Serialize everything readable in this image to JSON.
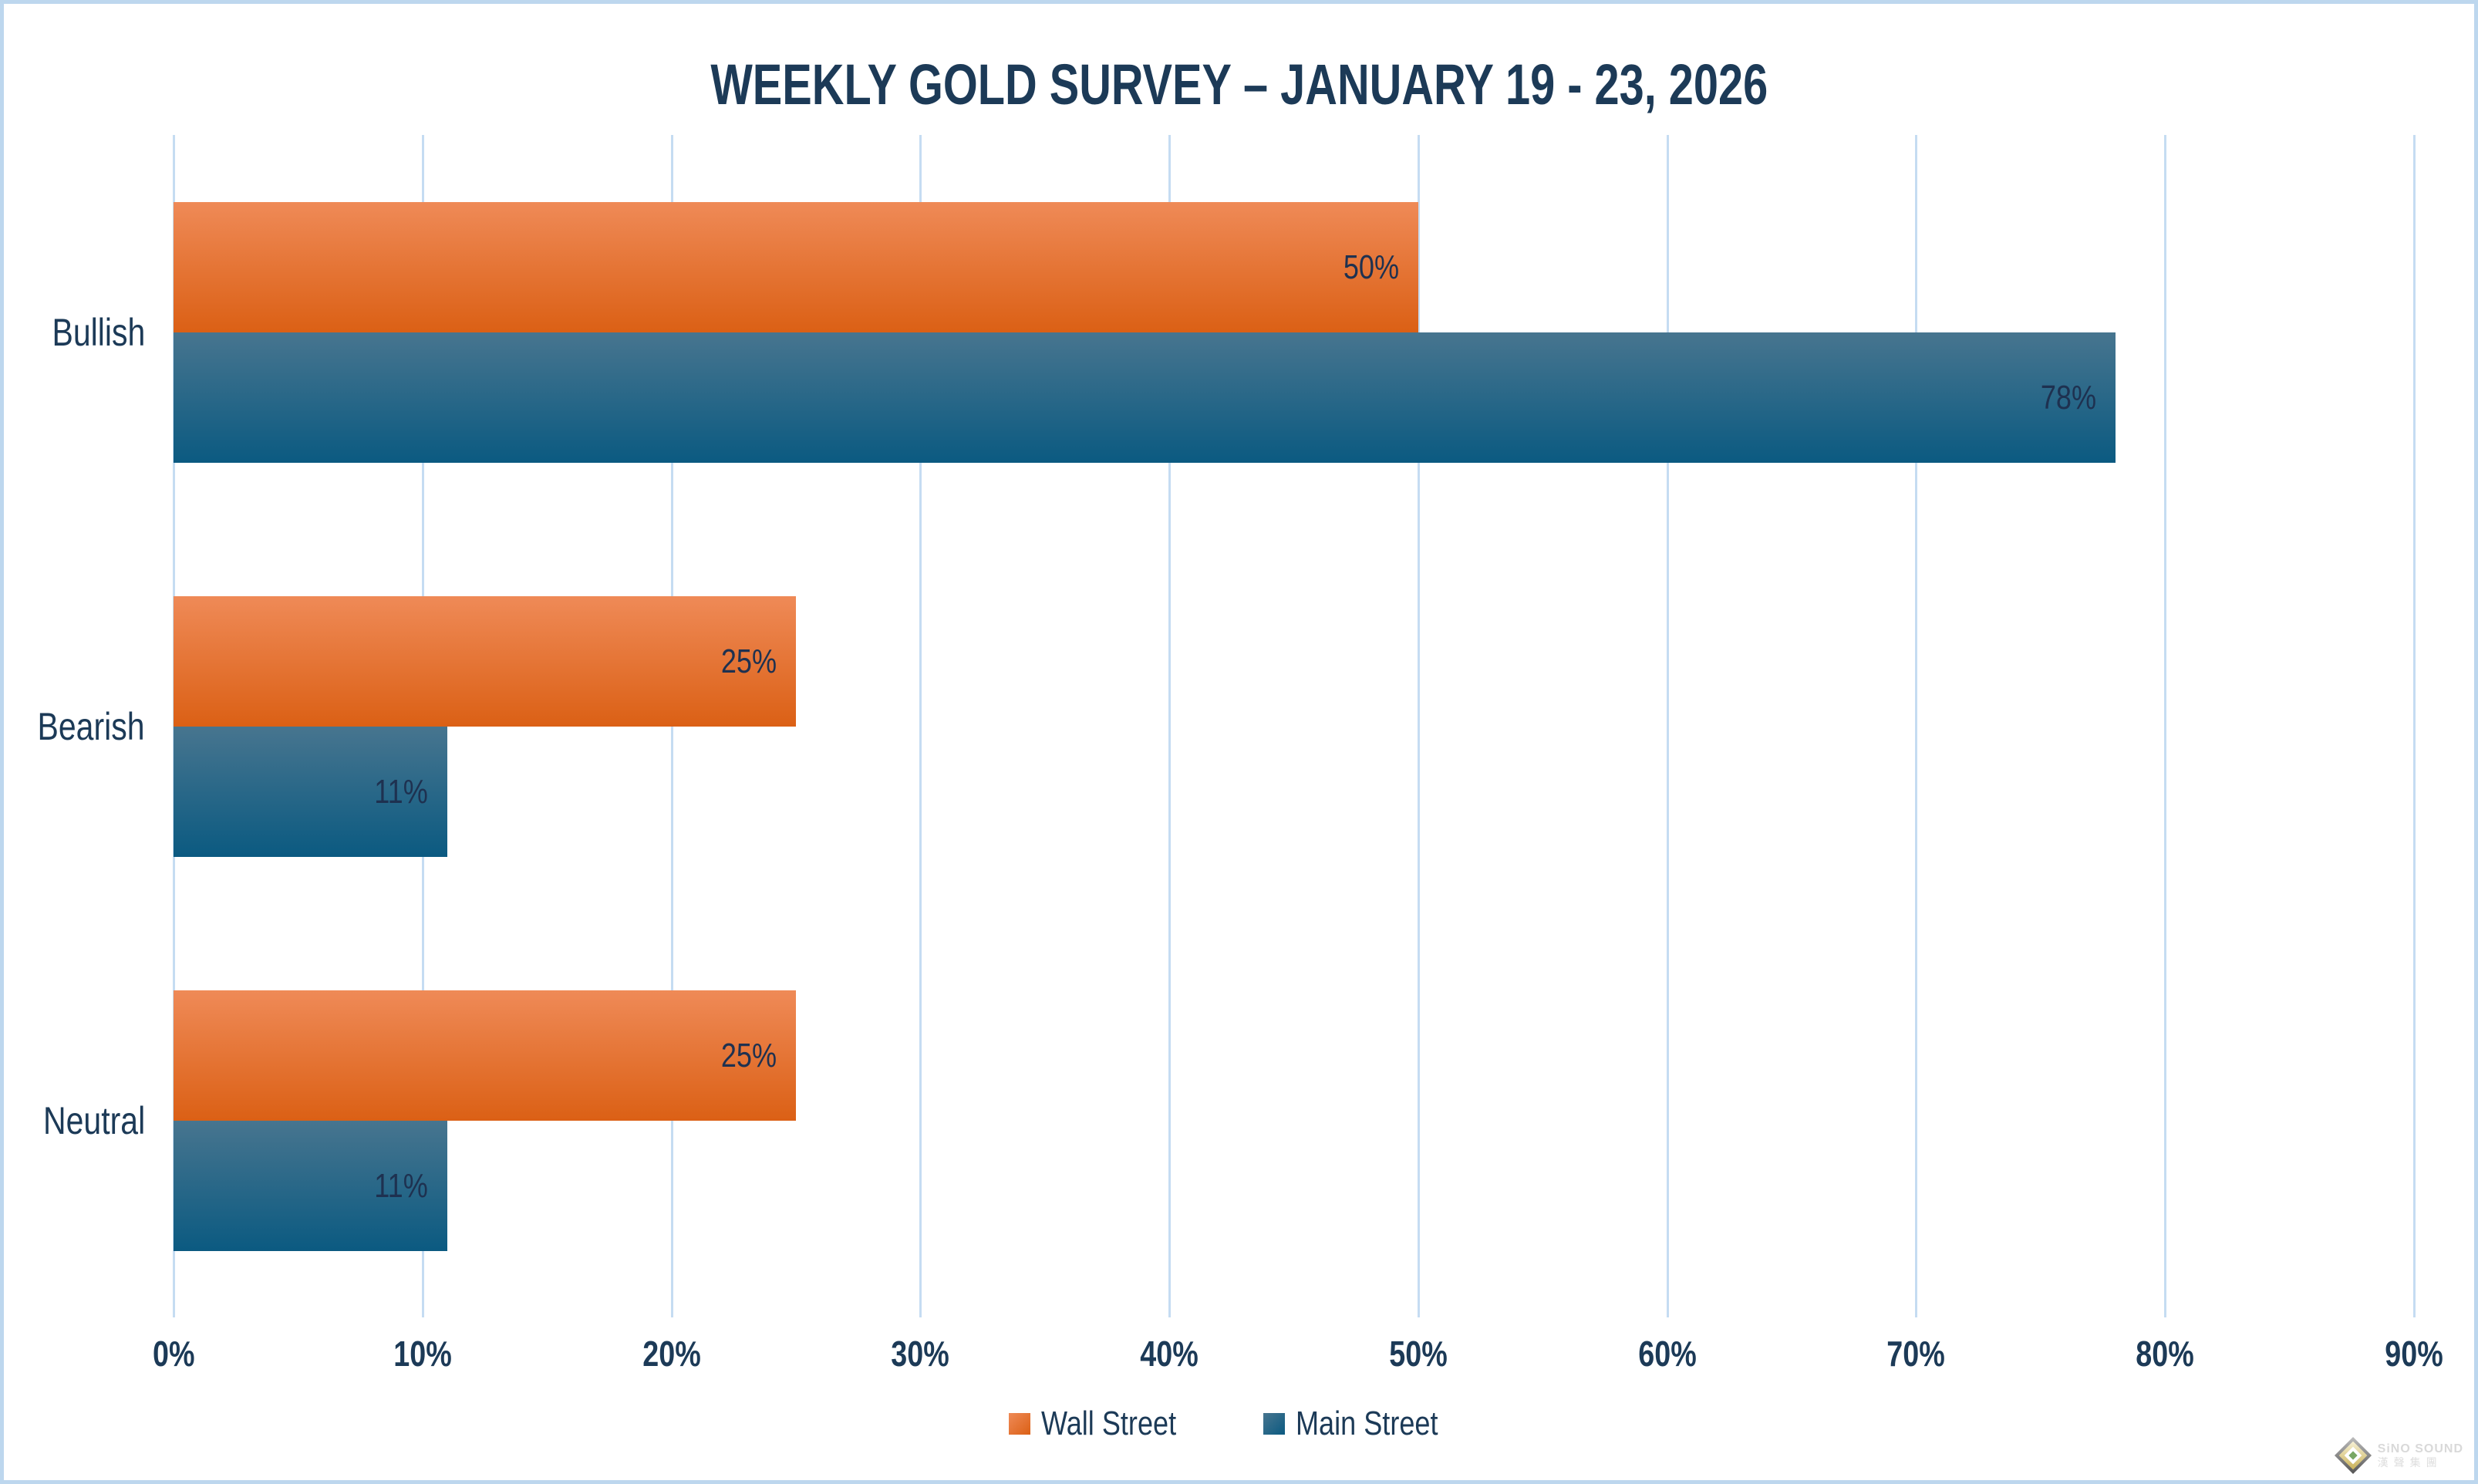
{
  "title": "WEEKLY GOLD SURVEY – JANUARY 19 - 23, 2026",
  "chart_data": {
    "type": "bar",
    "orientation": "horizontal",
    "title": "WEEKLY GOLD SURVEY – JANUARY 19 - 23, 2026",
    "categories": [
      "Bullish",
      "Bearish",
      "Neutral"
    ],
    "series": [
      {
        "name": "Wall Street",
        "values": [
          50,
          25,
          25
        ],
        "labels": [
          "50%",
          "25%",
          "25%"
        ],
        "color_top": "#ef8a57",
        "color_bottom": "#db6015",
        "legend_color": "#e2702c"
      },
      {
        "name": "Main Street",
        "values": [
          78,
          11,
          11
        ],
        "labels": [
          "78%",
          "11%",
          "11%"
        ],
        "color_top": "#47758f",
        "color_bottom": "#0b5a81",
        "legend_color": "#19617f"
      }
    ],
    "x_axis": {
      "min": 0,
      "max": 90,
      "ticks": [
        "0%",
        "10%",
        "20%",
        "30%",
        "40%",
        "50%",
        "60%",
        "70%",
        "80%",
        "90%"
      ],
      "grid": true
    },
    "legend_position": "bottom"
  },
  "colors": {
    "text": "#1c3a57",
    "gridline": "#c5dcf2",
    "frame_border": "#bdd7ee",
    "background": "#ffffff"
  },
  "watermark": {
    "line1": "SiNO SOUND",
    "line2": "漢聲集團"
  }
}
